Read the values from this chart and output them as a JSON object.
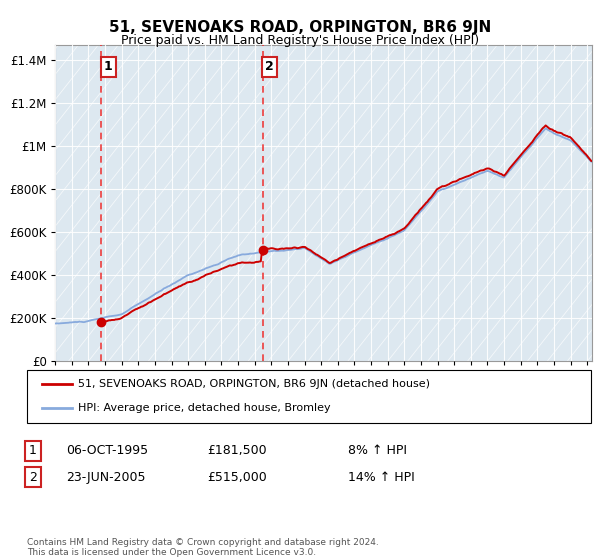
{
  "title": "51, SEVENOAKS ROAD, ORPINGTON, BR6 9JN",
  "subtitle": "Price paid vs. HM Land Registry's House Price Index (HPI)",
  "ylabel_ticks": [
    "£0",
    "£200K",
    "£400K",
    "£600K",
    "£800K",
    "£1M",
    "£1.2M",
    "£1.4M"
  ],
  "ytick_values": [
    0,
    200000,
    400000,
    600000,
    800000,
    1000000,
    1200000,
    1400000
  ],
  "ylim": [
    0,
    1470000
  ],
  "xlim": [
    1993,
    2025.3
  ],
  "hpi_color": "#88aadd",
  "price_color": "#cc0000",
  "vline_color": "#ee3333",
  "bg_color": "#dde8f0",
  "hatch_color": "#c8d8e8",
  "legend_label_price": "51, SEVENOAKS ROAD, ORPINGTON, BR6 9JN (detached house)",
  "legend_label_hpi": "HPI: Average price, detached house, Bromley",
  "transaction1_date": "06-OCT-1995",
  "transaction1_price": "£181,500",
  "transaction1_hpi": "8% ↑ HPI",
  "transaction2_date": "23-JUN-2005",
  "transaction2_price": "£515,000",
  "transaction2_hpi": "14% ↑ HPI",
  "footer": "Contains HM Land Registry data © Crown copyright and database right 2024.\nThis data is licensed under the Open Government Licence v3.0.",
  "transaction1_year": 1995.77,
  "transaction2_year": 2005.48,
  "transaction1_value": 181500,
  "transaction2_value": 515000
}
